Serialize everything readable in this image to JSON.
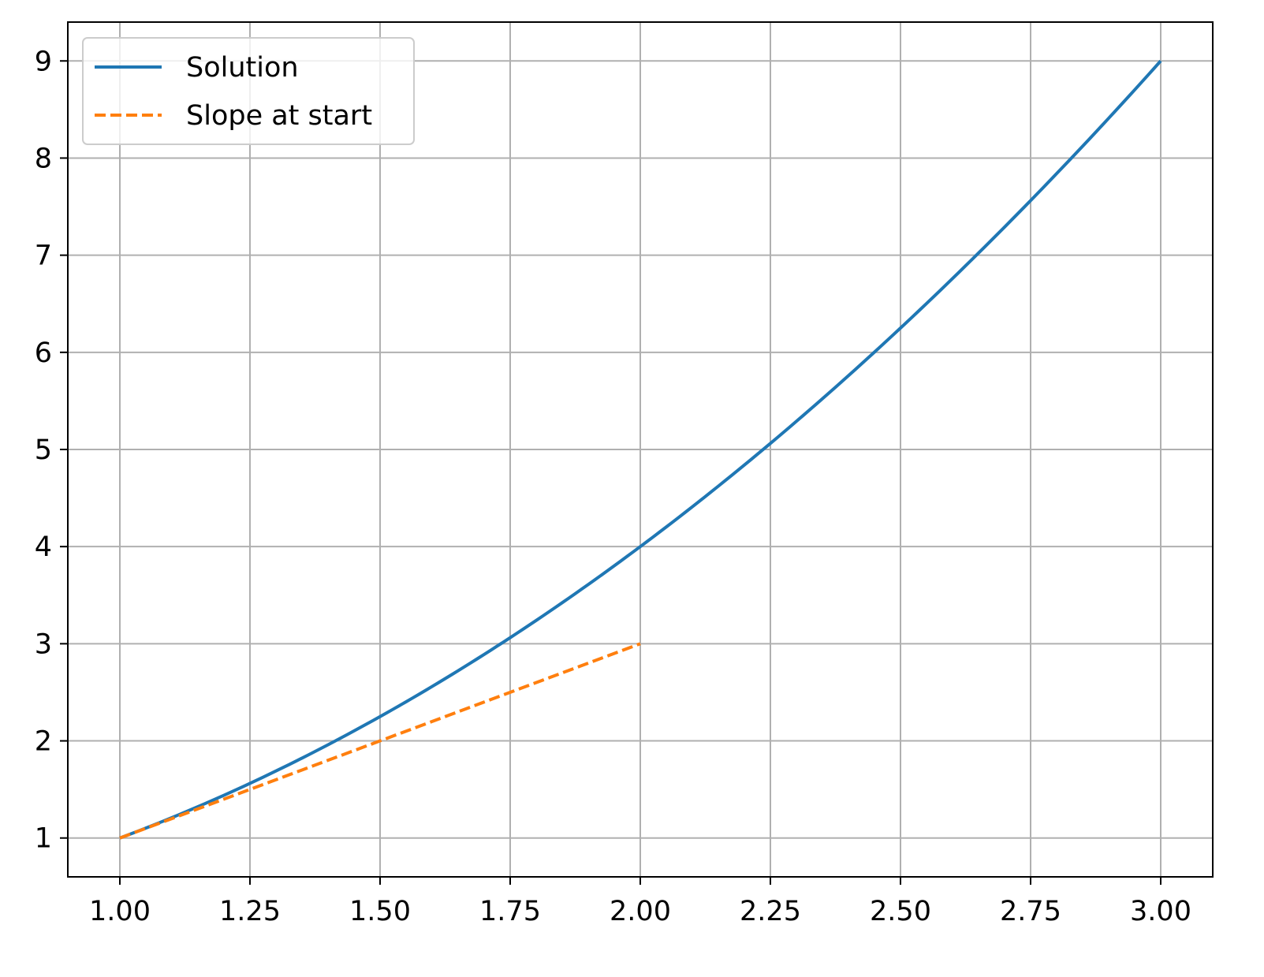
{
  "chart_data": {
    "type": "line",
    "title": "",
    "xlabel": "",
    "ylabel": "",
    "xlim": [
      0.9,
      3.1
    ],
    "ylim": [
      0.6,
      9.4
    ],
    "x_ticks": [
      1.0,
      1.25,
      1.5,
      1.75,
      2.0,
      2.25,
      2.5,
      2.75,
      3.0
    ],
    "x_tick_labels": [
      "1.00",
      "1.25",
      "1.50",
      "1.75",
      "2.00",
      "2.25",
      "2.50",
      "2.75",
      "3.00"
    ],
    "y_ticks": [
      1,
      2,
      3,
      4,
      5,
      6,
      7,
      8,
      9
    ],
    "y_tick_labels": [
      "1",
      "2",
      "3",
      "4",
      "5",
      "6",
      "7",
      "8",
      "9"
    ],
    "grid": true,
    "legend_position": "top-left",
    "series": [
      {
        "name": "Solution",
        "color": "#1f77b4",
        "style": "solid",
        "x": [
          1.0,
          1.25,
          1.5,
          1.75,
          2.0,
          2.25,
          2.5,
          2.75,
          3.0
        ],
        "y": [
          1.0,
          1.5625,
          2.25,
          3.0625,
          4.0,
          5.0625,
          6.25,
          7.5625,
          9.0
        ]
      },
      {
        "name": "Slope at start",
        "color": "#ff7f0e",
        "style": "dashed",
        "x": [
          1.0,
          2.0
        ],
        "y": [
          1.0,
          3.0
        ]
      }
    ]
  }
}
